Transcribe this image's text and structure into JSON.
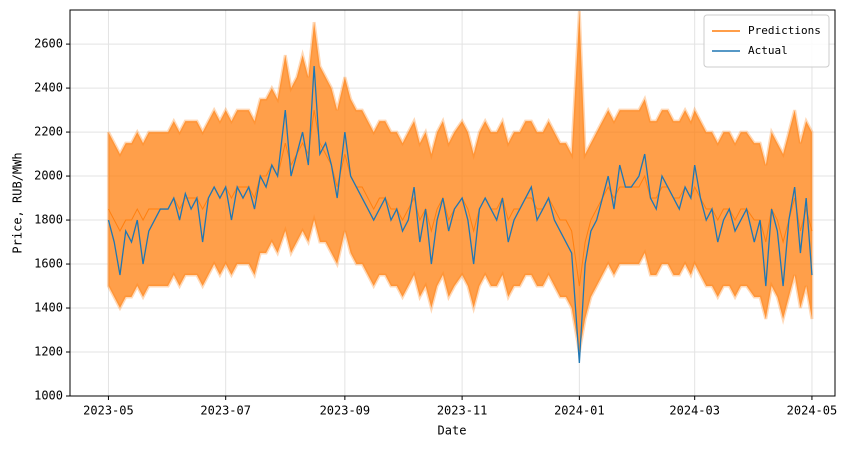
{
  "chart_data": {
    "type": "line",
    "xlabel": "Date",
    "ylabel": "Price, RUB/MWh",
    "xlim": [
      "2023-04-11",
      "2024-05-13"
    ],
    "xticks": [
      {
        "value": "2023-05-01",
        "label": "2023-05"
      },
      {
        "value": "2023-07-01",
        "label": "2023-07"
      },
      {
        "value": "2023-09-01",
        "label": "2023-09"
      },
      {
        "value": "2023-11-01",
        "label": "2023-11"
      },
      {
        "value": "2024-01-01",
        "label": "2024-01"
      },
      {
        "value": "2024-03-01",
        "label": "2024-03"
      },
      {
        "value": "2024-05-01",
        "label": "2024-05"
      }
    ],
    "ylim": [
      1000,
      2755
    ],
    "yticks": [
      1000,
      1200,
      1400,
      1600,
      1800,
      2000,
      2200,
      2400,
      2600
    ],
    "grid": true,
    "legend": "upper right",
    "x": [
      "2023-05-01",
      "2023-05-04",
      "2023-05-07",
      "2023-05-10",
      "2023-05-13",
      "2023-05-16",
      "2023-05-19",
      "2023-05-22",
      "2023-05-25",
      "2023-05-28",
      "2023-06-01",
      "2023-06-04",
      "2023-06-07",
      "2023-06-10",
      "2023-06-13",
      "2023-06-16",
      "2023-06-19",
      "2023-06-22",
      "2023-06-25",
      "2023-06-28",
      "2023-07-01",
      "2023-07-04",
      "2023-07-07",
      "2023-07-10",
      "2023-07-13",
      "2023-07-16",
      "2023-07-19",
      "2023-07-22",
      "2023-07-25",
      "2023-07-28",
      "2023-08-01",
      "2023-08-04",
      "2023-08-07",
      "2023-08-10",
      "2023-08-13",
      "2023-08-16",
      "2023-08-19",
      "2023-08-22",
      "2023-08-25",
      "2023-08-28",
      "2023-09-01",
      "2023-09-04",
      "2023-09-07",
      "2023-09-10",
      "2023-09-13",
      "2023-09-16",
      "2023-09-19",
      "2023-09-22",
      "2023-09-25",
      "2023-09-28",
      "2023-10-01",
      "2023-10-04",
      "2023-10-07",
      "2023-10-10",
      "2023-10-13",
      "2023-10-16",
      "2023-10-19",
      "2023-10-22",
      "2023-10-25",
      "2023-10-28",
      "2023-11-01",
      "2023-11-04",
      "2023-11-07",
      "2023-11-10",
      "2023-11-13",
      "2023-11-16",
      "2023-11-19",
      "2023-11-22",
      "2023-11-25",
      "2023-11-28",
      "2023-12-01",
      "2023-12-04",
      "2023-12-07",
      "2023-12-10",
      "2023-12-13",
      "2023-12-16",
      "2023-12-19",
      "2023-12-22",
      "2023-12-25",
      "2023-12-28",
      "2024-01-01",
      "2024-01-04",
      "2024-01-07",
      "2024-01-10",
      "2024-01-13",
      "2024-01-16",
      "2024-01-19",
      "2024-01-22",
      "2024-01-25",
      "2024-01-28",
      "2024-02-01",
      "2024-02-04",
      "2024-02-07",
      "2024-02-10",
      "2024-02-13",
      "2024-02-16",
      "2024-02-19",
      "2024-02-22",
      "2024-02-25",
      "2024-02-28",
      "2024-03-01",
      "2024-03-04",
      "2024-03-07",
      "2024-03-10",
      "2024-03-13",
      "2024-03-16",
      "2024-03-19",
      "2024-03-22",
      "2024-03-25",
      "2024-03-28",
      "2024-04-01",
      "2024-04-04",
      "2024-04-07",
      "2024-04-10",
      "2024-04-13",
      "2024-04-16",
      "2024-04-19",
      "2024-04-22",
      "2024-04-25",
      "2024-04-28",
      "2024-05-01"
    ],
    "series": [
      {
        "name": "Predictions",
        "color": "#ff7f0e",
        "values": [
          1850,
          1800,
          1750,
          1800,
          1800,
          1850,
          1800,
          1850,
          1850,
          1850,
          1850,
          1900,
          1850,
          1900,
          1900,
          1900,
          1850,
          1900,
          1950,
          1900,
          1950,
          1900,
          1950,
          1950,
          1950,
          1900,
          2000,
          2000,
          2050,
          2000,
          2150,
          2050,
          2100,
          2150,
          2100,
          2300,
          2150,
          2100,
          2050,
          1950,
          2100,
          2000,
          1950,
          1950,
          1900,
          1850,
          1900,
          1900,
          1850,
          1850,
          1800,
          1850,
          1900,
          1800,
          1850,
          1750,
          1850,
          1900,
          1800,
          1850,
          1900,
          1850,
          1750,
          1850,
          1900,
          1850,
          1850,
          1900,
          1800,
          1850,
          1850,
          1900,
          1900,
          1850,
          1850,
          1900,
          1850,
          1800,
          1800,
          1750,
          1500,
          1700,
          1800,
          1850,
          1900,
          1950,
          1900,
          1950,
          1950,
          1950,
          1950,
          2000,
          1900,
          1900,
          1950,
          1950,
          1900,
          1900,
          1950,
          1900,
          1950,
          1900,
          1850,
          1850,
          1800,
          1850,
          1850,
          1800,
          1850,
          1850,
          1800,
          1800,
          1700,
          1850,
          1800,
          1700,
          1800,
          1900,
          1750,
          1850,
          1750
        ],
        "upper": [
          2200,
          2150,
          2100,
          2150,
          2150,
          2200,
          2150,
          2200,
          2200,
          2200,
          2200,
          2250,
          2200,
          2250,
          2250,
          2250,
          2200,
          2250,
          2300,
          2250,
          2300,
          2250,
          2300,
          2300,
          2300,
          2250,
          2350,
          2350,
          2400,
          2350,
          2550,
          2400,
          2450,
          2550,
          2450,
          2700,
          2500,
          2450,
          2400,
          2300,
          2450,
          2350,
          2300,
          2300,
          2250,
          2200,
          2250,
          2250,
          2200,
          2200,
          2150,
          2200,
          2250,
          2150,
          2200,
          2100,
          2200,
          2250,
          2150,
          2200,
          2250,
          2200,
          2100,
          2200,
          2250,
          2200,
          2200,
          2250,
          2150,
          2200,
          2200,
          2250,
          2250,
          2200,
          2200,
          2250,
          2200,
          2150,
          2150,
          2100,
          2750,
          2100,
          2150,
          2200,
          2250,
          2300,
          2250,
          2300,
          2300,
          2300,
          2300,
          2350,
          2250,
          2250,
          2300,
          2300,
          2250,
          2250,
          2300,
          2250,
          2300,
          2250,
          2200,
          2200,
          2150,
          2200,
          2200,
          2150,
          2200,
          2200,
          2150,
          2150,
          2050,
          2200,
          2150,
          2100,
          2200,
          2300,
          2150,
          2250,
          2200
        ],
        "lower": [
          1500,
          1450,
          1400,
          1450,
          1450,
          1500,
          1450,
          1500,
          1500,
          1500,
          1500,
          1550,
          1500,
          1550,
          1550,
          1550,
          1500,
          1550,
          1600,
          1550,
          1600,
          1550,
          1600,
          1600,
          1600,
          1550,
          1650,
          1650,
          1700,
          1650,
          1750,
          1650,
          1700,
          1750,
          1700,
          1800,
          1700,
          1700,
          1650,
          1600,
          1750,
          1650,
          1600,
          1600,
          1550,
          1500,
          1550,
          1550,
          1500,
          1500,
          1450,
          1500,
          1550,
          1450,
          1500,
          1400,
          1500,
          1550,
          1450,
          1500,
          1550,
          1500,
          1400,
          1500,
          1550,
          1500,
          1500,
          1550,
          1450,
          1500,
          1500,
          1550,
          1550,
          1500,
          1500,
          1550,
          1500,
          1450,
          1450,
          1400,
          1200,
          1350,
          1450,
          1500,
          1550,
          1600,
          1550,
          1600,
          1600,
          1600,
          1600,
          1650,
          1550,
          1550,
          1600,
          1600,
          1550,
          1550,
          1600,
          1550,
          1600,
          1550,
          1500,
          1500,
          1450,
          1500,
          1500,
          1450,
          1500,
          1500,
          1450,
          1450,
          1350,
          1500,
          1450,
          1350,
          1450,
          1550,
          1400,
          1500,
          1350
        ]
      },
      {
        "name": "Actual",
        "color": "#1f77b4",
        "values": [
          1800,
          1700,
          1550,
          1750,
          1700,
          1800,
          1600,
          1750,
          1800,
          1850,
          1850,
          1900,
          1800,
          1920,
          1850,
          1900,
          1700,
          1900,
          1950,
          1900,
          1950,
          1800,
          1950,
          1900,
          1950,
          1850,
          2000,
          1950,
          2050,
          2000,
          2300,
          2000,
          2100,
          2200,
          2050,
          2500,
          2100,
          2150,
          2050,
          1900,
          2200,
          2000,
          1950,
          1900,
          1850,
          1800,
          1850,
          1900,
          1800,
          1850,
          1750,
          1800,
          1950,
          1700,
          1850,
          1600,
          1800,
          1900,
          1750,
          1850,
          1900,
          1800,
          1600,
          1850,
          1900,
          1850,
          1800,
          1900,
          1700,
          1800,
          1850,
          1900,
          1950,
          1800,
          1850,
          1900,
          1800,
          1750,
          1700,
          1650,
          1150,
          1600,
          1750,
          1800,
          1900,
          2000,
          1850,
          2050,
          1950,
          1950,
          2000,
          2100,
          1900,
          1850,
          2000,
          1950,
          1900,
          1850,
          1950,
          1900,
          2050,
          1900,
          1800,
          1850,
          1700,
          1800,
          1850,
          1750,
          1800,
          1850,
          1700,
          1800,
          1500,
          1850,
          1750,
          1500,
          1800,
          1950,
          1650,
          1900,
          1550
        ]
      }
    ]
  }
}
